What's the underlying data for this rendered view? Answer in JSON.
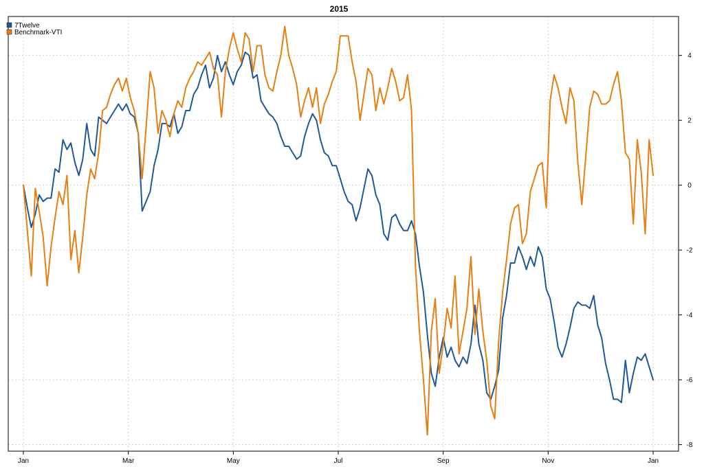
{
  "chart_data": {
    "type": "line",
    "title": "2015",
    "xlabel": "",
    "ylabel": "",
    "x_tick_labels": [
      "Jan",
      "Mar",
      "May",
      "Jul",
      "Sep",
      "Nov",
      "Jan"
    ],
    "y_ticks": [
      -8,
      -6,
      -4,
      -2,
      0,
      2,
      4
    ],
    "ylim": [
      -8.2,
      5.2
    ],
    "grid": true,
    "legend_position": "top-left",
    "y_axis_side": "right",
    "series": [
      {
        "name": "7Twelve",
        "color": "#1f5797",
        "values": [
          0.0,
          -0.7,
          -1.3,
          -0.9,
          -0.3,
          -0.5,
          -0.4,
          -0.4,
          0.5,
          0.4,
          1.4,
          1.1,
          1.3,
          0.7,
          0.3,
          0.8,
          1.9,
          1.1,
          0.9,
          2.1,
          2.0,
          1.9,
          2.1,
          2.3,
          2.5,
          2.3,
          2.5,
          2.2,
          2.1,
          1.6,
          -0.8,
          -0.5,
          -0.2,
          0.6,
          1.1,
          1.9,
          1.9,
          1.8,
          2.2,
          1.6,
          1.8,
          2.3,
          2.3,
          2.8,
          3.0,
          3.4,
          3.7,
          3.0,
          3.3,
          4.0,
          3.5,
          3.8,
          3.4,
          3.1,
          3.5,
          3.7,
          4.1,
          4.0,
          3.3,
          3.4,
          2.6,
          2.4,
          2.2,
          2.1,
          1.9,
          1.5,
          1.2,
          1.2,
          1.0,
          0.8,
          0.9,
          1.5,
          1.9,
          2.2,
          2.0,
          1.4,
          1.0,
          0.9,
          0.6,
          0.6,
          0.2,
          -0.2,
          -0.5,
          -0.6,
          -1.1,
          -0.7,
          -0.1,
          0.5,
          0.3,
          -0.3,
          -0.6,
          -1.5,
          -1.7,
          -1.0,
          -0.9,
          -1.2,
          -1.4,
          -1.4,
          -1.1,
          -1.5,
          -2.5,
          -3.3,
          -4.6,
          -5.8,
          -6.2,
          -5.3,
          -4.7,
          -5.3,
          -5.0,
          -5.4,
          -5.6,
          -5.3,
          -5.5,
          -4.9,
          -3.7,
          -4.9,
          -5.4,
          -6.4,
          -6.6,
          -6.2,
          -5.7,
          -4.1,
          -3.4,
          -2.4,
          -2.4,
          -1.9,
          -2.2,
          -2.6,
          -2.2,
          -2.5,
          -1.9,
          -2.2,
          -3.2,
          -3.5,
          -4.2,
          -5.0,
          -5.3,
          -4.9,
          -4.4,
          -3.8,
          -3.6,
          -3.7,
          -3.7,
          -3.8,
          -3.4,
          -4.3,
          -4.7,
          -5.5,
          -6.0,
          -6.6,
          -6.6,
          -6.7,
          -5.4,
          -6.4,
          -5.8,
          -5.3,
          -5.4,
          -5.2,
          -5.6,
          -6.0
        ]
      },
      {
        "name": "Benchmark-VTI",
        "color": "#e67e12",
        "values": [
          0.0,
          -1.4,
          -2.8,
          -0.1,
          -0.8,
          -1.6,
          -3.1,
          -1.9,
          -1.0,
          -0.2,
          -0.6,
          0.3,
          -2.3,
          -1.4,
          -2.7,
          -1.6,
          -0.3,
          0.5,
          0.2,
          1.0,
          2.3,
          2.4,
          2.8,
          3.1,
          3.3,
          2.9,
          3.3,
          2.7,
          2.3,
          1.6,
          0.2,
          1.8,
          3.5,
          3.0,
          1.6,
          2.3,
          2.0,
          1.5,
          2.2,
          2.6,
          2.4,
          3.0,
          3.3,
          3.5,
          3.8,
          3.7,
          3.9,
          4.1,
          3.6,
          3.4,
          2.1,
          3.5,
          4.2,
          4.7,
          4.2,
          3.8,
          4.7,
          4.5,
          3.5,
          4.3,
          4.3,
          3.4,
          3.0,
          2.9,
          3.5,
          4.0,
          4.9,
          4.0,
          3.6,
          3.1,
          2.1,
          2.6,
          3.0,
          2.4,
          3.0,
          1.9,
          2.5,
          2.8,
          3.2,
          3.5,
          4.6,
          4.6,
          4.6,
          3.8,
          3.2,
          2.0,
          2.8,
          3.6,
          3.4,
          2.3,
          3.0,
          2.5,
          3.0,
          3.6,
          3.2,
          2.6,
          2.7,
          3.4,
          2.3,
          -2.5,
          -4.5,
          -6.0,
          -7.7,
          -4.5,
          -3.5,
          -5.8,
          -4.9,
          -3.8,
          -4.4,
          -2.8,
          -5.2,
          -4.5,
          -3.8,
          -2.2,
          -4.6,
          -3.2,
          -4.5,
          -5.4,
          -6.8,
          -7.2,
          -4.8,
          -3.3,
          -2.3,
          -1.2,
          -0.7,
          -0.6,
          -1.8,
          -1.5,
          -0.2,
          0.2,
          0.6,
          0.7,
          -0.7,
          2.6,
          3.4,
          3.0,
          2.4,
          1.9,
          3.0,
          2.6,
          0.7,
          -0.6,
          0.9,
          2.4,
          2.9,
          2.8,
          2.5,
          2.5,
          2.6,
          3.1,
          3.5,
          2.6,
          1.0,
          0.8,
          -1.2,
          1.4,
          0.4,
          -1.5,
          1.4,
          0.3
        ]
      }
    ]
  }
}
